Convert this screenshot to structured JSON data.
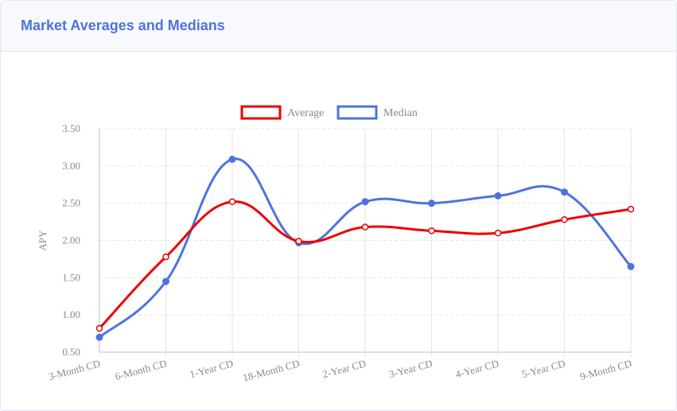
{
  "card": {
    "title": "Market Averages and Medians"
  },
  "chart_data": {
    "type": "line",
    "categories": [
      "3-Month CD",
      "6-Month CD",
      "1-Year CD",
      "18-Month CD",
      "2-Year CD",
      "3-Year CD",
      "4-Year CD",
      "5-Year CD",
      "9-Month CD"
    ],
    "series": [
      {
        "name": "Average",
        "color": "#ee0000",
        "values": [
          0.82,
          1.78,
          2.52,
          1.99,
          2.18,
          2.13,
          2.1,
          2.28,
          2.42
        ]
      },
      {
        "name": "Median",
        "color": "#4e73df",
        "values": [
          0.7,
          1.45,
          3.09,
          1.97,
          2.52,
          2.5,
          2.6,
          2.65,
          1.65
        ]
      }
    ],
    "ylabel": "APY",
    "xlabel": "",
    "ylim": [
      0.5,
      3.5
    ],
    "yticks": [
      "3.50",
      "3.00",
      "2.50",
      "2.00",
      "1.50",
      "1.00",
      "0.50"
    ],
    "grid": true,
    "legend_position": "top"
  }
}
